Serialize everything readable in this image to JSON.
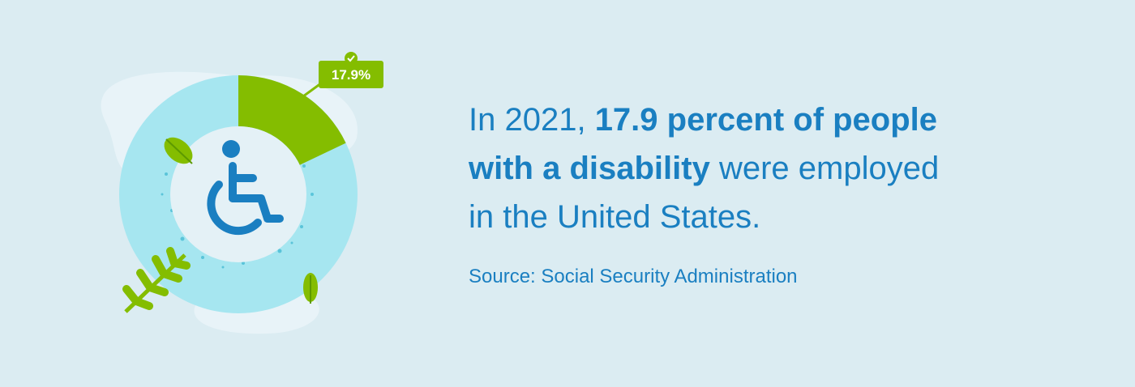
{
  "chart_data": {
    "type": "donut",
    "values": [
      17.9
    ],
    "value_labels": [
      "17.9%"
    ],
    "color": "#84bd00",
    "track_color": "#a6e6f0"
  },
  "text": {
    "headline": [
      [
        {
          "text": "In 2021, ",
          "bold": false
        },
        {
          "text": "17.9 percent of people",
          "bold": true
        }
      ],
      [
        {
          "text": "with a disability",
          "bold": true
        },
        {
          "text": " were employed",
          "bold": false
        }
      ],
      [
        {
          "text": "in the United States.",
          "bold": false
        }
      ]
    ],
    "source": "Source: Social Security Administration"
  }
}
